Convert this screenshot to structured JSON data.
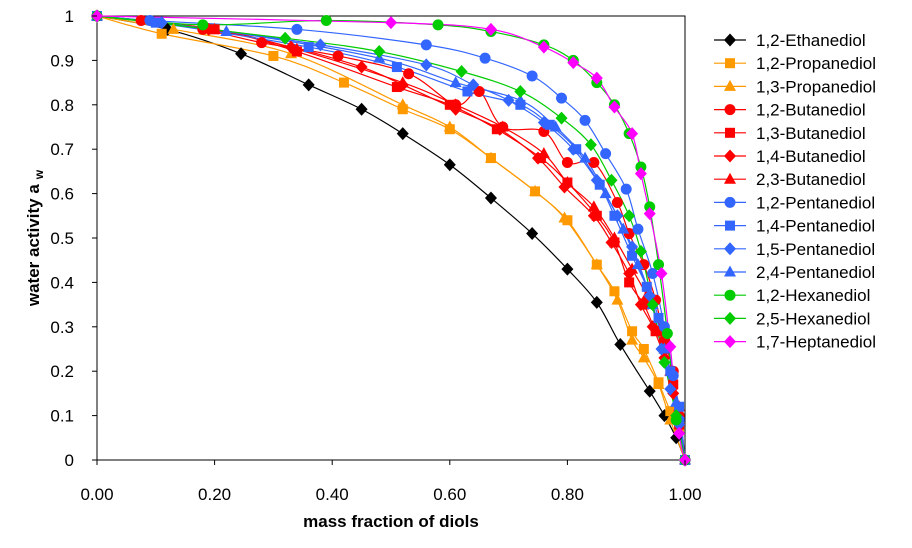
{
  "chart_data": {
    "type": "scatter",
    "title": "",
    "xlabel": "mass fraction of diols",
    "ylabel": "water activity a w",
    "ylabel_main": "water activity a",
    "ylabel_sub": "w",
    "xlim": [
      0,
      1
    ],
    "ylim": [
      0,
      1
    ],
    "x_ticks": [
      "0.00",
      "0.20",
      "0.40",
      "0.60",
      "0.80",
      "1.00"
    ],
    "y_ticks": [
      "0",
      "0.1",
      "0.2",
      "0.3",
      "0.4",
      "0.5",
      "0.6",
      "0.7",
      "0.8",
      "0.9",
      "1"
    ],
    "grid": false,
    "legend_position": "right",
    "series": [
      {
        "name": "1,2-Ethanediol",
        "color": "#000000",
        "marker": "diamond",
        "x": [
          0,
          0.12,
          0.245,
          0.36,
          0.45,
          0.52,
          0.6,
          0.67,
          0.74,
          0.8,
          0.85,
          0.89,
          0.94,
          0.965,
          0.985,
          1.0
        ],
        "y": [
          1,
          0.97,
          0.915,
          0.845,
          0.79,
          0.735,
          0.665,
          0.59,
          0.51,
          0.43,
          0.355,
          0.26,
          0.155,
          0.1,
          0.05,
          0.0
        ]
      },
      {
        "name": "1,2-Propanediol",
        "color": "#FF9900",
        "marker": "square",
        "x": [
          0,
          0.11,
          0.3,
          0.42,
          0.52,
          0.6,
          0.67,
          0.745,
          0.8,
          0.85,
          0.88,
          0.91,
          0.93,
          0.955,
          0.975,
          0.99,
          1.0
        ],
        "y": [
          1,
          0.96,
          0.91,
          0.85,
          0.79,
          0.745,
          0.68,
          0.605,
          0.54,
          0.44,
          0.38,
          0.29,
          0.25,
          0.175,
          0.11,
          0.07,
          0.0
        ]
      },
      {
        "name": "1,3-Propanediol",
        "color": "#FF9900",
        "marker": "triangle",
        "x": [
          0,
          0.13,
          0.33,
          0.52,
          0.6,
          0.67,
          0.745,
          0.795,
          0.85,
          0.885,
          0.91,
          0.93,
          0.955,
          0.975,
          1.0
        ],
        "y": [
          1,
          0.97,
          0.915,
          0.8,
          0.75,
          0.68,
          0.605,
          0.545,
          0.44,
          0.36,
          0.27,
          0.23,
          0.17,
          0.09,
          0.0
        ]
      },
      {
        "name": "1,2-Butanediol",
        "color": "#FF0000",
        "marker": "circle",
        "x": [
          0,
          0.075,
          0.18,
          0.28,
          0.41,
          0.53,
          0.61,
          0.65,
          0.69,
          0.76,
          0.8,
          0.845,
          0.885,
          0.905,
          0.93,
          0.95,
          0.965,
          0.98,
          0.99,
          1.0
        ],
        "y": [
          1,
          0.99,
          0.97,
          0.94,
          0.91,
          0.87,
          0.8,
          0.83,
          0.75,
          0.74,
          0.67,
          0.67,
          0.58,
          0.51,
          0.44,
          0.36,
          0.27,
          0.2,
          0.1,
          0.0
        ]
      },
      {
        "name": "1,3-Butanediol",
        "color": "#FF0000",
        "marker": "square",
        "x": [
          0,
          0.2,
          0.34,
          0.51,
          0.6,
          0.68,
          0.755,
          0.8,
          0.85,
          0.88,
          0.905,
          0.93,
          0.95,
          0.965,
          0.98,
          0.99,
          1.0
        ],
        "y": [
          1,
          0.97,
          0.92,
          0.84,
          0.8,
          0.745,
          0.68,
          0.625,
          0.55,
          0.49,
          0.4,
          0.35,
          0.29,
          0.25,
          0.17,
          0.08,
          0.0
        ]
      },
      {
        "name": "1,4-Butanediol",
        "color": "#FF0000",
        "marker": "diamond",
        "x": [
          0,
          0.19,
          0.33,
          0.45,
          0.52,
          0.61,
          0.685,
          0.75,
          0.795,
          0.845,
          0.875,
          0.905,
          0.925,
          0.945,
          0.965,
          0.98,
          0.99,
          1.0
        ],
        "y": [
          1,
          0.97,
          0.93,
          0.885,
          0.845,
          0.79,
          0.745,
          0.68,
          0.615,
          0.55,
          0.49,
          0.42,
          0.35,
          0.3,
          0.23,
          0.15,
          0.08,
          0.0
        ]
      },
      {
        "name": "2,3-Butanediol",
        "color": "#FF0000",
        "marker": "triangle",
        "x": [
          0,
          0.2,
          0.34,
          0.52,
          0.61,
          0.69,
          0.76,
          0.8,
          0.845,
          0.88,
          0.91,
          0.935,
          0.96,
          0.975,
          0.99,
          1.0
        ],
        "y": [
          1,
          0.97,
          0.925,
          0.85,
          0.8,
          0.75,
          0.69,
          0.625,
          0.57,
          0.5,
          0.43,
          0.37,
          0.29,
          0.2,
          0.12,
          0.0
        ]
      },
      {
        "name": "1,2-Pentanediol",
        "color": "#3366FF",
        "marker": "circle",
        "x": [
          0,
          0.09,
          0.34,
          0.56,
          0.66,
          0.74,
          0.79,
          0.83,
          0.865,
          0.9,
          0.92,
          0.945,
          0.965,
          0.98,
          0.99,
          1.0
        ],
        "y": [
          1,
          0.99,
          0.97,
          0.935,
          0.905,
          0.865,
          0.815,
          0.765,
          0.69,
          0.61,
          0.52,
          0.42,
          0.3,
          0.19,
          0.09,
          0.0
        ]
      },
      {
        "name": "1,4-Pentanediol",
        "color": "#3366FF",
        "marker": "square",
        "x": [
          0,
          0.1,
          0.36,
          0.51,
          0.63,
          0.72,
          0.77,
          0.815,
          0.855,
          0.88,
          0.91,
          0.935,
          0.955,
          0.975,
          0.99,
          1.0
        ],
        "y": [
          1,
          0.985,
          0.93,
          0.885,
          0.83,
          0.8,
          0.755,
          0.7,
          0.62,
          0.55,
          0.46,
          0.39,
          0.32,
          0.2,
          0.12,
          0.0
        ]
      },
      {
        "name": "1,5-Pentanediol",
        "color": "#3366FF",
        "marker": "diamond",
        "x": [
          0,
          0.11,
          0.38,
          0.56,
          0.64,
          0.7,
          0.76,
          0.81,
          0.85,
          0.885,
          0.91,
          0.94,
          0.96,
          0.975,
          0.99,
          1.0
        ],
        "y": [
          1,
          0.985,
          0.935,
          0.89,
          0.845,
          0.81,
          0.76,
          0.7,
          0.63,
          0.55,
          0.48,
          0.37,
          0.25,
          0.16,
          0.08,
          0.0
        ]
      },
      {
        "name": "2,4-Pentanediol",
        "color": "#3366FF",
        "marker": "triangle",
        "x": [
          0,
          0.22,
          0.48,
          0.61,
          0.72,
          0.78,
          0.83,
          0.865,
          0.895,
          0.92,
          0.945,
          0.965,
          0.985,
          1.0
        ],
        "y": [
          1,
          0.965,
          0.905,
          0.85,
          0.81,
          0.75,
          0.68,
          0.6,
          0.52,
          0.44,
          0.35,
          0.25,
          0.13,
          0.0
        ]
      },
      {
        "name": "1,2-Hexanediol",
        "color": "#00CC00",
        "marker": "circle",
        "x": [
          0,
          0.18,
          0.39,
          0.58,
          0.67,
          0.76,
          0.81,
          0.85,
          0.88,
          0.905,
          0.925,
          0.94,
          0.955,
          0.97,
          0.985,
          1.0
        ],
        "y": [
          1,
          0.98,
          0.99,
          0.98,
          0.965,
          0.935,
          0.9,
          0.85,
          0.8,
          0.735,
          0.66,
          0.57,
          0.44,
          0.285,
          0.09,
          0.0
        ]
      },
      {
        "name": "2,5-Hexanediol",
        "color": "#00CC00",
        "marker": "diamond",
        "x": [
          0,
          0.32,
          0.48,
          0.62,
          0.72,
          0.79,
          0.84,
          0.875,
          0.905,
          0.925,
          0.945,
          0.965,
          0.985,
          1.0
        ],
        "y": [
          1,
          0.95,
          0.92,
          0.875,
          0.83,
          0.77,
          0.71,
          0.63,
          0.55,
          0.47,
          0.35,
          0.22,
          0.1,
          0.0
        ]
      },
      {
        "name": "1,7-Heptanediol",
        "color": "#FF00FF",
        "marker": "diamond",
        "x": [
          0,
          0.5,
          0.67,
          0.76,
          0.81,
          0.85,
          0.88,
          0.91,
          0.925,
          0.94,
          0.96,
          0.975,
          0.99,
          1.0
        ],
        "y": [
          1,
          0.985,
          0.97,
          0.93,
          0.895,
          0.86,
          0.795,
          0.735,
          0.645,
          0.555,
          0.42,
          0.255,
          0.06,
          0.0
        ]
      }
    ]
  }
}
